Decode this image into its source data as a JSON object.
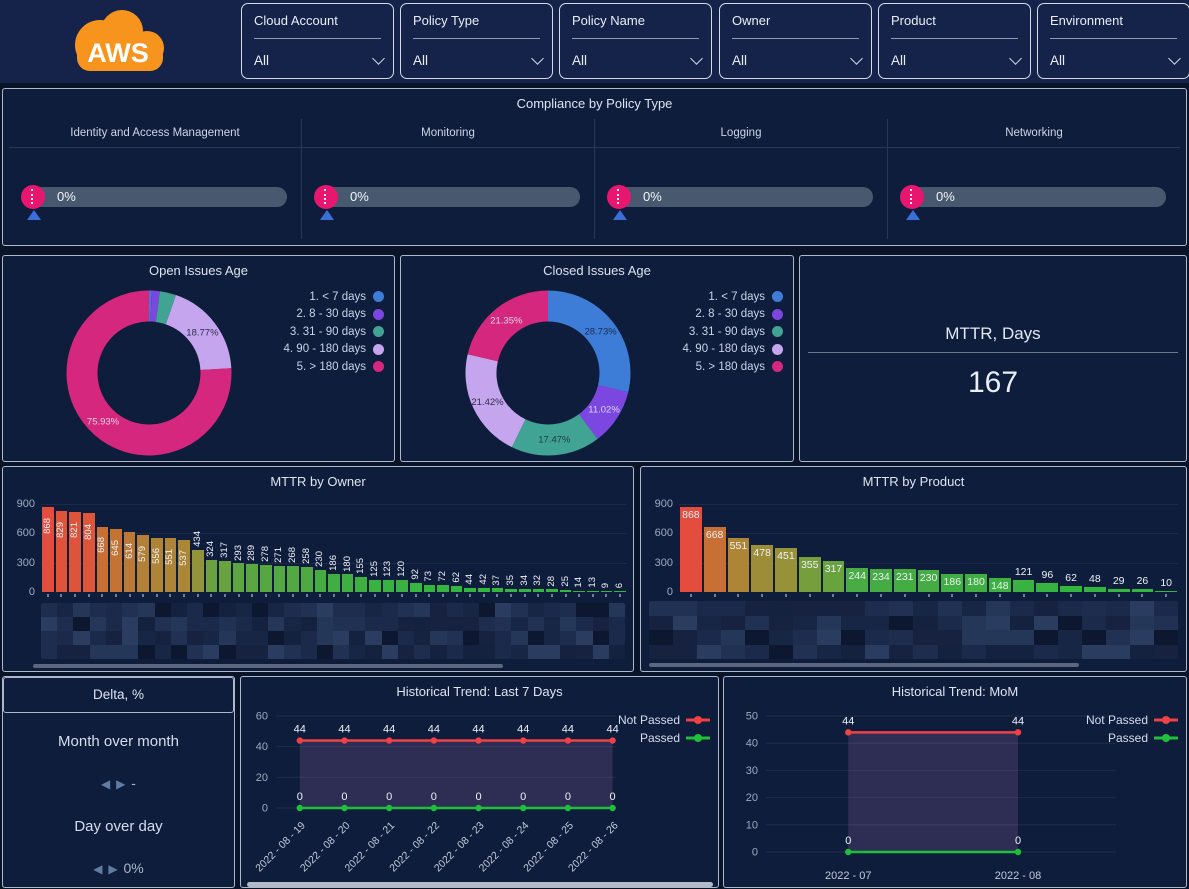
{
  "header": {
    "logo_text": "AWS",
    "logo_color": "#f7941e",
    "filters": [
      {
        "label": "Cloud Account",
        "value": "All"
      },
      {
        "label": "Policy Type",
        "value": "All"
      },
      {
        "label": "Policy Name",
        "value": "All"
      },
      {
        "label": "Owner",
        "value": "All"
      },
      {
        "label": "Product",
        "value": "All"
      },
      {
        "label": "Environment",
        "value": "All"
      }
    ]
  },
  "compliance": {
    "title": "Compliance by Policy Type",
    "marker_color": "#e7176f",
    "track_color": "#47586f",
    "pointer_color": "#3a6fd8",
    "gauges": [
      {
        "label": "Identity and Access Management",
        "value": 0,
        "value_text": "0%"
      },
      {
        "label": "Monitoring",
        "value": 0,
        "value_text": "0%"
      },
      {
        "label": "Logging",
        "value": 0,
        "value_text": "0%"
      },
      {
        "label": "Networking",
        "value": 0,
        "value_text": "0%"
      }
    ]
  },
  "delta": {
    "title": "Delta, %",
    "rows": [
      {
        "label": "Month over month",
        "value": "-"
      },
      {
        "label": "Day over day",
        "value": "0%"
      }
    ]
  },
  "chart_data": {
    "open_issues_age": {
      "type": "pie",
      "title": "Open Issues Age",
      "legend_position": "right",
      "slices": [
        {
          "label": "1. < 7 days",
          "pct": 0.5,
          "color": "#3d7dd8",
          "show": false,
          "label_text": "",
          "label_color": ""
        },
        {
          "label": "2. 8 - 30 days",
          "pct": 1.6,
          "color": "#7c46e0",
          "show": false,
          "label_text": "",
          "label_color": ""
        },
        {
          "label": "3. 31 - 90 days",
          "pct": 3.2,
          "color": "#41a394",
          "show": false,
          "label_text": "",
          "label_color": ""
        },
        {
          "label": "4. 90 - 180 days",
          "pct": 18.77,
          "color": "#c5a5ee",
          "show": true,
          "label_text": "18.77%",
          "label_color": "#2b3046"
        },
        {
          "label": "5. > 180 days",
          "pct": 75.93,
          "color": "#d5277d",
          "show": true,
          "label_text": "75.93%",
          "label_color": "#e3d2e4"
        }
      ]
    },
    "closed_issues_age": {
      "type": "pie",
      "title": "Closed Issues Age",
      "legend_position": "right",
      "slices": [
        {
          "label": "1. < 7 days",
          "pct": 28.73,
          "color": "#3d7dd8",
          "show": true,
          "label_text": "28.73%",
          "label_color": "#1e2b4d"
        },
        {
          "label": "2. 8 - 30 days",
          "pct": 11.02,
          "color": "#7c46e0",
          "show": true,
          "label_text": "11.02%",
          "label_color": "#d9d6f2"
        },
        {
          "label": "3. 31 - 90 days",
          "pct": 17.47,
          "color": "#41a394",
          "show": true,
          "label_text": "17.47%",
          "label_color": "#1e3d49"
        },
        {
          "label": "4. 90 - 180 days",
          "pct": 21.42,
          "color": "#c5a5ee",
          "show": true,
          "label_text": "21.42%",
          "label_color": "#2b3046"
        },
        {
          "label": "5. > 180 days",
          "pct": 21.35,
          "color": "#d5277d",
          "show": true,
          "label_text": "21.35%",
          "label_color": "#e3d2e4"
        }
      ]
    },
    "mttr_days": {
      "type": "stat",
      "title": "MTTR, Days",
      "value": "167"
    },
    "mttr_by_owner": {
      "type": "bar",
      "title": "MTTR by Owner",
      "ylabel": "",
      "ylim": [
        0,
        900
      ],
      "yticks": [
        0,
        300,
        600,
        900
      ],
      "values": [
        868,
        829,
        821,
        804,
        668,
        645,
        614,
        579,
        556,
        551,
        537,
        434,
        324,
        317,
        293,
        289,
        278,
        271,
        268,
        258,
        230,
        186,
        180,
        155,
        125,
        123,
        120,
        92,
        73,
        72,
        62,
        44,
        42,
        37,
        35,
        34,
        32,
        28,
        25,
        14,
        13,
        9,
        6
      ],
      "x_labels": "redacted-pixelated"
    },
    "mttr_by_product": {
      "type": "bar",
      "title": "MTTR by Product",
      "ylabel": "",
      "ylim": [
        0,
        900
      ],
      "yticks": [
        0,
        300,
        600,
        900
      ],
      "values": [
        868,
        668,
        551,
        478,
        451,
        355,
        317,
        244,
        234,
        231,
        230,
        186,
        180,
        148,
        121,
        96,
        62,
        48,
        29,
        26,
        10
      ],
      "x_labels": "redacted-pixelated"
    },
    "trend_last7": {
      "type": "line",
      "title": "Historical Trend: Last 7 Days",
      "ylim": [
        0,
        60
      ],
      "yticks": [
        0,
        20,
        40,
        60
      ],
      "x": [
        "2022 - 08 - 19",
        "2022 - 08 - 20",
        "2022 - 08 - 21",
        "2022 - 08 - 22",
        "2022 - 08 - 23",
        "2022 - 08 - 24",
        "2022 - 08 - 25",
        "2022 - 08 - 26"
      ],
      "series": [
        {
          "name": "Not Passed",
          "color": "#ef4146",
          "values": [
            44,
            44,
            44,
            44,
            44,
            44,
            44,
            44
          ]
        },
        {
          "name": "Passed",
          "color": "#1fbf3a",
          "values": [
            0,
            0,
            0,
            0,
            0,
            0,
            0,
            0
          ]
        }
      ],
      "fill": "rgba(135,95,155,0.26)",
      "legend_position": "right"
    },
    "trend_mom": {
      "type": "line",
      "title": "Historical Trend: MoM",
      "ylim": [
        0,
        50
      ],
      "yticks": [
        0,
        10,
        20,
        30,
        40,
        50
      ],
      "x": [
        "2022 - 07",
        "2022 - 08"
      ],
      "series": [
        {
          "name": "Not Passed",
          "color": "#ef4146",
          "values": [
            44,
            44
          ]
        },
        {
          "name": "Passed",
          "color": "#1fbf3a",
          "values": [
            0,
            0
          ]
        }
      ],
      "fill": "rgba(135,95,155,0.26)",
      "legend_position": "right"
    }
  },
  "style": {
    "bar_color_stops": [
      [
        900,
        "#e8463f"
      ],
      [
        700,
        "#cf6a33"
      ],
      [
        560,
        "#b08336"
      ],
      [
        450,
        "#97913a"
      ],
      [
        340,
        "#72a03e"
      ],
      [
        240,
        "#46ab43"
      ],
      [
        0,
        "#2db93f"
      ]
    ],
    "redaction_palette": [
      "#16223f",
      "#1b294b",
      "#213154",
      "#182646",
      "#253759",
      "#1e2c4e",
      "#2a3c60",
      "#14213f",
      "#0d1830"
    ]
  }
}
